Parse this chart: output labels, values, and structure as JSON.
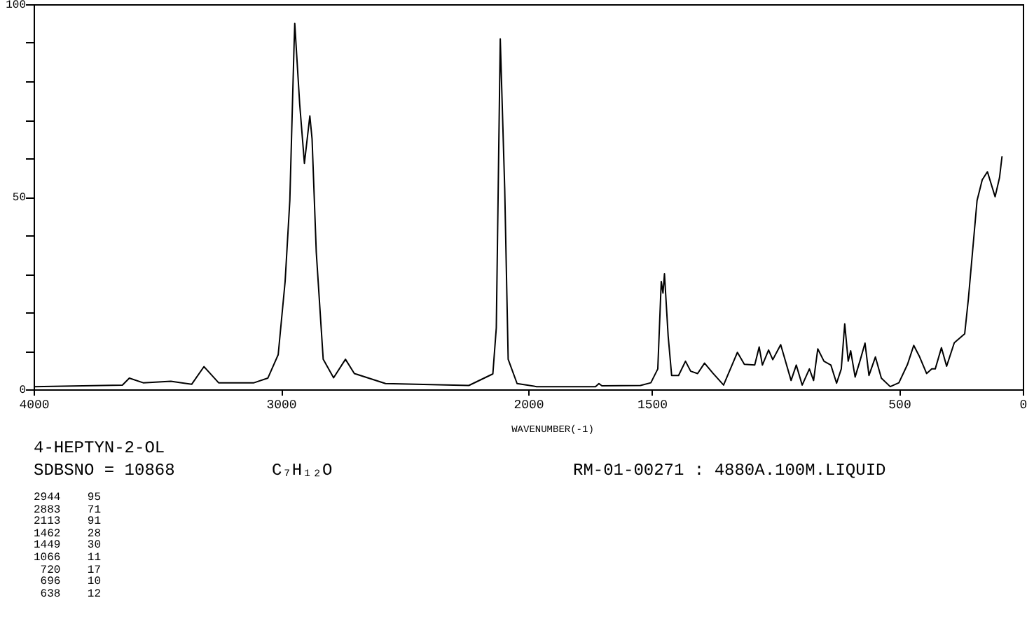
{
  "chart_data": {
    "type": "line",
    "xlabel": "WAVENUMBER(-1)",
    "x": [
      4000,
      3641,
      3613,
      3557,
      3445,
      3361,
      3311,
      3252,
      3109,
      3053,
      3011,
      2983,
      2964,
      2947,
      2944,
      2924,
      2905,
      2883,
      2874,
      2857,
      2829,
      2787,
      2739,
      2703,
      2577,
      2240,
      2143,
      2129,
      2113,
      2095,
      2081,
      2045,
      1966,
      1728,
      1714,
      1702,
      1546,
      1504,
      1476,
      1462,
      1455,
      1449,
      1434,
      1420,
      1392,
      1364,
      1343,
      1315,
      1287,
      1252,
      1210,
      1154,
      1126,
      1084,
      1066,
      1053,
      1028,
      1011,
      979,
      937,
      916,
      892,
      863,
      846,
      829,
      804,
      776,
      753,
      734,
      720,
      706,
      696,
      678,
      657,
      638,
      622,
      596,
      572,
      536,
      501,
      466,
      441,
      417,
      389,
      368,
      354,
      329,
      308,
      277,
      235,
      220,
      185,
      164,
      143,
      112,
      94,
      84
    ],
    "series": [
      {
        "color": "#000000",
        "values": [
          0.7,
          1.1,
          2.9,
          1.7,
          2.1,
          1.3,
          5.9,
          1.7,
          1.7,
          2.9,
          9,
          28,
          49,
          89,
          95,
          74,
          58.7,
          71,
          65,
          35.6,
          7.8,
          3,
          7.8,
          4.1,
          1.5,
          1,
          4,
          16,
          91,
          52,
          7.8,
          1.5,
          0.7,
          0.7,
          1.5,
          0.9,
          1,
          1.7,
          5.3,
          28,
          25,
          30,
          13.8,
          3.6,
          3.6,
          7.3,
          4.7,
          4.1,
          6.8,
          4.1,
          1.1,
          9.6,
          6.5,
          6.3,
          11,
          6.3,
          10.2,
          7.7,
          11.6,
          2.3,
          6.3,
          1.1,
          5.3,
          2.3,
          10.5,
          7.3,
          6.3,
          1.6,
          5.3,
          17,
          7.3,
          10,
          3.2,
          7.7,
          12,
          3.6,
          8.4,
          2.9,
          0.7,
          1.7,
          6.5,
          11.4,
          8.4,
          4.1,
          5.3,
          5.3,
          10.8,
          6,
          12.1,
          14.4,
          23.5,
          49,
          54.4,
          56.5,
          50,
          55,
          60.5
        ]
      }
    ],
    "xlim": [
      4000,
      0
    ],
    "xticks": [
      4000,
      3000,
      2000,
      1500,
      500,
      0
    ],
    "ylim": [
      0,
      100
    ],
    "yticks": [
      0,
      {
        "value": 10,
        "label": null
      },
      {
        "value": 20,
        "label": null
      },
      {
        "value": 30,
        "label": null
      },
      {
        "value": 40,
        "label": null
      },
      50,
      {
        "value": 60,
        "label": null
      },
      {
        "value": 70,
        "label": null
      },
      {
        "value": 80,
        "label": null
      },
      {
        "value": 90,
        "label": null
      },
      100
    ],
    "grid": false,
    "marker": "none",
    "line_style": "solid",
    "annotations": [
      "4-HEPTYN-2-OL",
      "SDBSNO = 10868",
      "C₇H₁₂O",
      "RM-01-00271 : 4880A.100M.LIQUID",
      "2944    95",
      "2883    71",
      "2113    91",
      "1462    28",
      "1449    30",
      "1066    11",
      " 720    17",
      " 696    10",
      " 638    12"
    ]
  }
}
